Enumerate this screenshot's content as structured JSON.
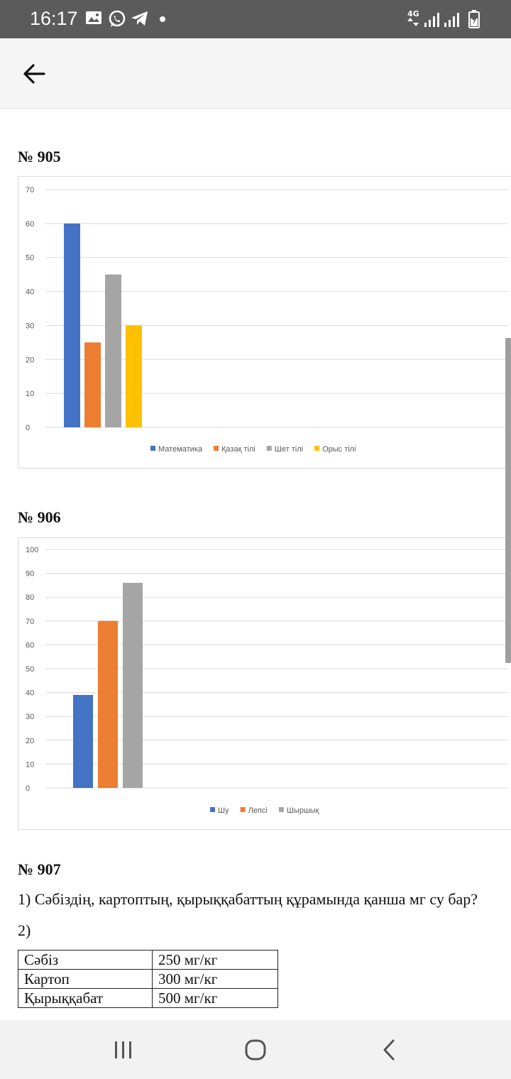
{
  "status_bar": {
    "time": "16:17",
    "network": "4G",
    "icons": [
      "gallery-icon",
      "whatsapp-icon",
      "telegram-icon",
      "dot-icon",
      "signal-icon",
      "battery-icon"
    ]
  },
  "app_bar": {
    "back_icon": "arrow-left-icon"
  },
  "problems": [
    {
      "heading": "№ 905"
    },
    {
      "heading": "№ 906"
    },
    {
      "heading": "№ 907"
    }
  ],
  "chart_data": [
    {
      "type": "bar",
      "title": "",
      "xlabel": "",
      "ylabel": "",
      "categories": [
        ""
      ],
      "series": [
        {
          "name": "Математика",
          "values": [
            60
          ],
          "color": "#4472c4"
        },
        {
          "name": "Қазақ тілі",
          "values": [
            25
          ],
          "color": "#ed7d31"
        },
        {
          "name": "Шет тілі",
          "values": [
            45
          ],
          "color": "#a5a5a5"
        },
        {
          "name": "Орыс тілі",
          "values": [
            30
          ],
          "color": "#ffc000"
        }
      ],
      "ylim": [
        0,
        70
      ],
      "yticks": [
        "0",
        "10",
        "20",
        "30",
        "40",
        "50",
        "60",
        "70"
      ],
      "grid": true,
      "legend": "bottom"
    },
    {
      "type": "bar",
      "title": "",
      "xlabel": "",
      "ylabel": "",
      "categories": [
        ""
      ],
      "series": [
        {
          "name": "Шу",
          "values": [
            39
          ],
          "color": "#4472c4"
        },
        {
          "name": "Лепсі",
          "values": [
            70
          ],
          "color": "#ed7d31"
        },
        {
          "name": "Шыршық",
          "values": [
            86
          ],
          "color": "#a5a5a5"
        }
      ],
      "ylim": [
        0,
        100
      ],
      "yticks": [
        "0",
        "10",
        "20",
        "30",
        "40",
        "50",
        "60",
        "70",
        "80",
        "90",
        "100"
      ],
      "grid": true,
      "legend": "bottom"
    }
  ],
  "problem907": {
    "question1": "1) Сәбіздің, картоптың, қырыққабаттың құрамында қанша мг су бар?",
    "question2": "2)",
    "table": [
      {
        "name": "Сәбіз",
        "value": "250 мг/кг"
      },
      {
        "name": "Картоп",
        "value": "300 мг/кг"
      },
      {
        "name": "Қырыққабат",
        "value": "500 мг/кг"
      }
    ]
  },
  "nav_bar": {
    "icons": [
      "recent-apps-icon",
      "home-icon",
      "back-nav-icon"
    ]
  }
}
